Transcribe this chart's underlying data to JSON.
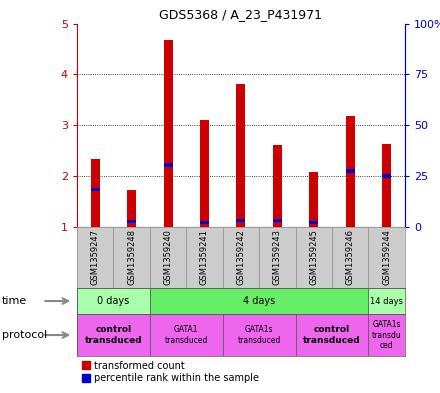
{
  "title": "GDS5368 / A_23_P431971",
  "samples": [
    "GSM1359247",
    "GSM1359248",
    "GSM1359240",
    "GSM1359241",
    "GSM1359242",
    "GSM1359243",
    "GSM1359245",
    "GSM1359246",
    "GSM1359244"
  ],
  "red_values": [
    2.33,
    1.73,
    4.68,
    3.1,
    3.82,
    2.6,
    2.07,
    3.18,
    2.62
  ],
  "blue_values": [
    1.73,
    1.1,
    2.22,
    1.08,
    1.12,
    1.12,
    1.08,
    2.1,
    2.0
  ],
  "ylim": [
    1,
    5
  ],
  "yticks_left": [
    1,
    2,
    3,
    4,
    5
  ],
  "yticks_right": [
    0,
    25,
    50,
    75,
    100
  ],
  "ylabel_left_color": "#cc0000",
  "ylabel_right_color": "#0000cc",
  "time_groups": [
    {
      "label": "0 days",
      "start": 0,
      "end": 2,
      "color": "#aaffaa"
    },
    {
      "label": "4 days",
      "start": 2,
      "end": 8,
      "color": "#66ee66"
    },
    {
      "label": "14 days",
      "start": 8,
      "end": 9,
      "color": "#aaffaa"
    }
  ],
  "protocol_groups": [
    {
      "label": "control\ntransduced",
      "start": 0,
      "end": 2,
      "color": "#ee66ee",
      "bold": true
    },
    {
      "label": "GATA1\ntransduced",
      "start": 2,
      "end": 4,
      "color": "#ee66ee",
      "bold": false
    },
    {
      "label": "GATA1s\ntransduced",
      "start": 4,
      "end": 6,
      "color": "#ee66ee",
      "bold": false
    },
    {
      "label": "control\ntransduced",
      "start": 6,
      "end": 8,
      "color": "#ee66ee",
      "bold": true
    },
    {
      "label": "GATA1s\ntransdu\nced",
      "start": 8,
      "end": 9,
      "color": "#ee66ee",
      "bold": false
    }
  ],
  "bar_color": "#cc0000",
  "blue_color": "#0000cc",
  "bg_color": "#ffffff",
  "sample_bg_color": "#cccccc",
  "legend_red": "transformed count",
  "legend_blue": "percentile rank within the sample",
  "bar_width": 0.25
}
